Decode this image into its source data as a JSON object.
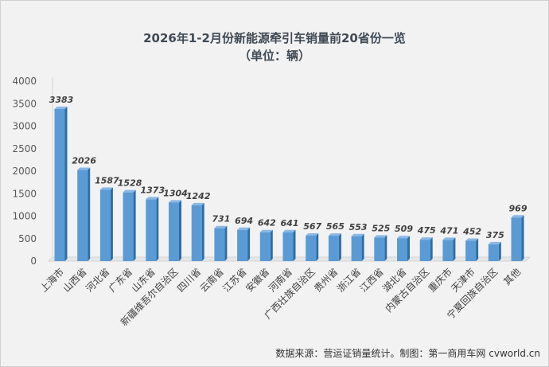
{
  "chart_data": {
    "type": "bar",
    "title": "2026年1-2月份新能源牵引车销量前20省份一览",
    "subtitle": "（单位：辆）",
    "categories": [
      "上海市",
      "山西省",
      "河北省",
      "广东省",
      "山东省",
      "新疆维吾尔自治区",
      "四川省",
      "云南省",
      "江苏省",
      "安徽省",
      "河南省",
      "广西壮族自治区",
      "贵州省",
      "浙江省",
      "江西省",
      "湖北省",
      "内蒙古自治区",
      "重庆市",
      "天津市",
      "宁夏回族自治区",
      "其他"
    ],
    "values": [
      3383,
      2026,
      1587,
      1528,
      1373,
      1304,
      1242,
      731,
      694,
      642,
      641,
      567,
      565,
      553,
      525,
      509,
      475,
      471,
      452,
      375,
      969
    ],
    "ylim": [
      0,
      4000
    ],
    "yticks": [
      0,
      500,
      1000,
      1500,
      2000,
      2500,
      3000,
      3500,
      4000
    ],
    "grid": false,
    "bar_color": "#5b9bd5",
    "source": "数据来源：营运证销量统计。制图：第一商用车网 cvworld.cn"
  }
}
